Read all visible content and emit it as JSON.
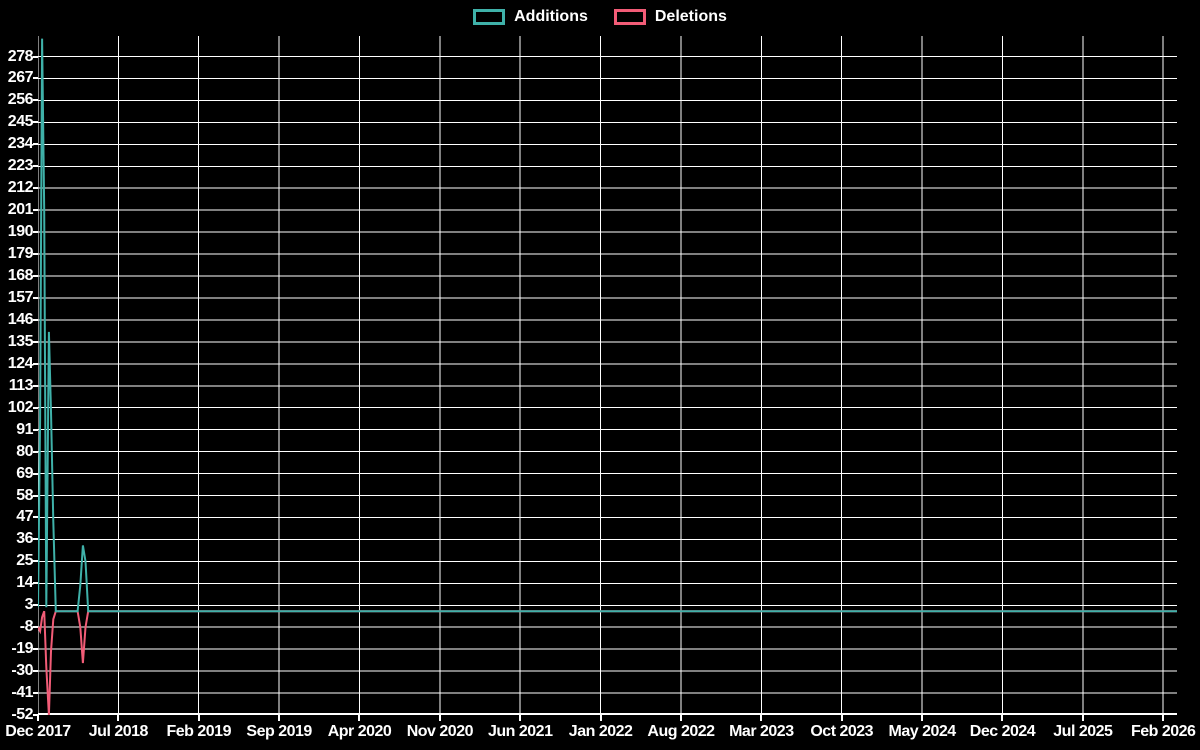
{
  "chart_data": {
    "type": "line",
    "title": "",
    "background_color": "#000000",
    "grid": {
      "show": true,
      "color": "#ffffff"
    },
    "legend_position": "top-center",
    "legend": [
      {
        "label": "Additions",
        "color": "#3fb1a9"
      },
      {
        "label": "Deletions",
        "color": "#f25c77"
      }
    ],
    "x_axis": {
      "label": "",
      "ticks": [
        "Dec 2017",
        "Jul 2018",
        "Feb 2019",
        "Sep 2019",
        "Apr 2020",
        "Nov 2020",
        "Jun 2021",
        "Jan 2022",
        "Aug 2022",
        "Mar 2023",
        "Oct 2023",
        "May 2024",
        "Dec 2024",
        "Jul 2025",
        "Feb 2026"
      ],
      "tick_interval_months": 7,
      "months_span": 99.2
    },
    "y_axis": {
      "label": "",
      "ticks": [
        278,
        267,
        256,
        245,
        234,
        223,
        212,
        201,
        190,
        179,
        168,
        157,
        146,
        135,
        124,
        113,
        102,
        91,
        80,
        69,
        58,
        47,
        36,
        25,
        14,
        3,
        -8,
        -19,
        -30,
        -41,
        -52
      ],
      "min": -52,
      "max": 288.3
    },
    "series": [
      {
        "name": "Deletions",
        "color": "#f25c77",
        "points_note": "x = months after Dec 2017 tick, y = lines deleted per week",
        "points": [
          [
            0,
            -8
          ],
          [
            0.18,
            -10
          ],
          [
            0.36,
            -3
          ],
          [
            0.54,
            0
          ],
          [
            0.72,
            -28
          ],
          [
            0.95,
            -52
          ],
          [
            1.13,
            -20
          ],
          [
            1.33,
            -4
          ],
          [
            1.55,
            0
          ],
          [
            3.45,
            0
          ],
          [
            3.68,
            -8
          ],
          [
            3.91,
            -26
          ],
          [
            4.14,
            -8
          ],
          [
            4.37,
            0
          ],
          [
            99.2,
            0
          ]
        ]
      },
      {
        "name": "Additions",
        "color": "#3fb1a9",
        "points_note": "x = months after Dec 2017 tick, y = lines added per week",
        "points": [
          [
            0,
            2
          ],
          [
            0.18,
            96
          ],
          [
            0.36,
            287
          ],
          [
            0.54,
            201
          ],
          [
            0.72,
            2
          ],
          [
            0.95,
            140
          ],
          [
            1.13,
            100
          ],
          [
            1.33,
            45
          ],
          [
            1.55,
            0
          ],
          [
            3.45,
            0
          ],
          [
            3.68,
            13
          ],
          [
            3.91,
            33
          ],
          [
            4.14,
            25
          ],
          [
            4.37,
            0
          ],
          [
            99.2,
            0
          ]
        ]
      }
    ]
  }
}
